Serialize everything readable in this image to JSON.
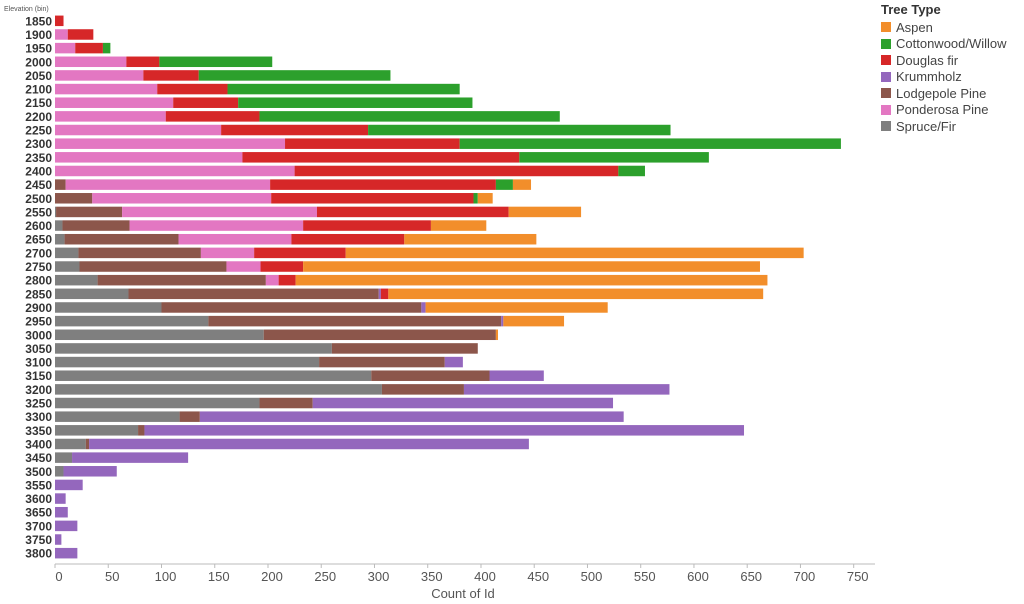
{
  "chart_data": {
    "type": "bar",
    "orientation": "horizontal",
    "stacked": true,
    "ylabel": "Elevation (bin)",
    "xlabel": "Count of Id",
    "xlim": [
      0,
      770
    ],
    "xticks": [
      0,
      50,
      100,
      150,
      200,
      250,
      300,
      350,
      400,
      450,
      500,
      550,
      600,
      650,
      700,
      750
    ],
    "grid": false,
    "legend_title": "Tree Type",
    "legend_position": "right",
    "categories": [
      "1850",
      "1900",
      "1950",
      "2000",
      "2050",
      "2100",
      "2150",
      "2200",
      "2250",
      "2300",
      "2350",
      "2400",
      "2450",
      "2500",
      "2550",
      "2600",
      "2650",
      "2700",
      "2750",
      "2800",
      "2850",
      "2900",
      "2950",
      "3000",
      "3050",
      "3100",
      "3150",
      "3200",
      "3250",
      "3300",
      "3350",
      "3400",
      "3450",
      "3500",
      "3550",
      "3600",
      "3650",
      "3700",
      "3750",
      "3800"
    ],
    "stack_order": [
      "Spruce/Fir",
      "Lodgepole Pine",
      "Ponderosa Pine",
      "Krummholz",
      "Douglas fir",
      "Cottonwood/Willow",
      "Aspen"
    ],
    "series": [
      {
        "name": "Aspen",
        "color": "#f28e2b",
        "values": [
          0,
          0,
          0,
          0,
          0,
          0,
          0,
          0,
          0,
          0,
          0,
          0,
          17,
          14,
          68,
          52,
          124,
          430,
          429,
          443,
          352,
          171,
          57,
          2,
          0,
          0,
          0,
          0,
          0,
          0,
          0,
          0,
          0,
          0,
          0,
          0,
          0,
          0,
          0,
          0
        ]
      },
      {
        "name": "Cottonwood/Willow",
        "color": "#2ca02c",
        "values": [
          0,
          0,
          7,
          106,
          180,
          218,
          220,
          282,
          284,
          358,
          178,
          25,
          16,
          4,
          0,
          0,
          0,
          0,
          0,
          0,
          0,
          0,
          0,
          0,
          0,
          0,
          0,
          0,
          0,
          0,
          0,
          0,
          0,
          0,
          0,
          0,
          0,
          0,
          0,
          0
        ]
      },
      {
        "name": "Douglas fir",
        "color": "#d62728",
        "values": [
          8,
          24,
          26,
          31,
          52,
          66,
          61,
          88,
          138,
          164,
          260,
          304,
          212,
          190,
          180,
          120,
          106,
          86,
          40,
          16,
          7,
          0,
          0,
          0,
          0,
          0,
          0,
          0,
          0,
          0,
          0,
          0,
          0,
          0,
          0,
          0,
          0,
          0,
          0,
          0
        ]
      },
      {
        "name": "Krummholz",
        "color": "#9467bd",
        "values": [
          0,
          0,
          0,
          0,
          0,
          0,
          0,
          0,
          0,
          0,
          0,
          0,
          0,
          0,
          0,
          0,
          0,
          0,
          0,
          0,
          2,
          4,
          2,
          0,
          0,
          17,
          51,
          193,
          282,
          398,
          563,
          413,
          109,
          50,
          26,
          10,
          12,
          21,
          6,
          21
        ]
      },
      {
        "name": "Lodgepole Pine",
        "color": "#8c564b",
        "values": [
          0,
          0,
          0,
          0,
          0,
          0,
          0,
          0,
          0,
          0,
          0,
          0,
          10,
          35,
          62,
          63,
          107,
          115,
          138,
          158,
          235,
          244,
          275,
          218,
          137,
          118,
          111,
          77,
          50,
          19,
          6,
          3,
          0,
          0,
          0,
          0,
          0,
          0,
          0,
          0
        ]
      },
      {
        "name": "Ponderosa Pine",
        "color": "#e377c2",
        "values": [
          0,
          12,
          19,
          67,
          83,
          96,
          111,
          104,
          156,
          216,
          176,
          225,
          192,
          168,
          183,
          163,
          106,
          50,
          32,
          12,
          0,
          0,
          0,
          0,
          0,
          0,
          0,
          0,
          0,
          0,
          0,
          0,
          0,
          0,
          0,
          0,
          0,
          0,
          0,
          0
        ]
      },
      {
        "name": "Spruce/Fir",
        "color": "#7f7f7f",
        "values": [
          0,
          0,
          0,
          0,
          0,
          0,
          0,
          0,
          0,
          0,
          0,
          0,
          0,
          0,
          1,
          7,
          9,
          22,
          23,
          40,
          69,
          100,
          144,
          196,
          260,
          248,
          297,
          307,
          192,
          117,
          78,
          29,
          16,
          8,
          0,
          0,
          0,
          0,
          0,
          0
        ]
      }
    ]
  }
}
